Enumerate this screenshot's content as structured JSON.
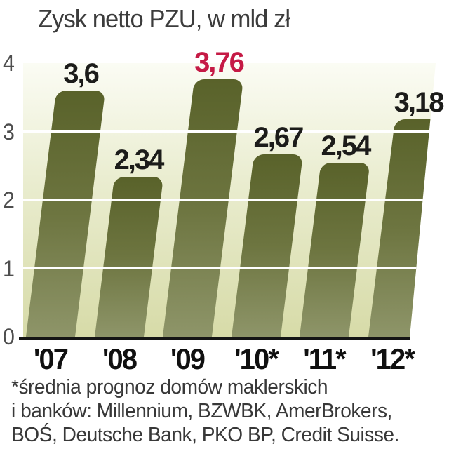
{
  "title": "Zysk netto PZU, w mld zł",
  "chart_data": {
    "type": "bar",
    "title": "Zysk netto PZU, w mld zł",
    "categories": [
      "'07",
      "'08",
      "'09",
      "'10*",
      "'11*",
      "'12*"
    ],
    "values": [
      3.6,
      2.34,
      3.76,
      2.67,
      2.54,
      3.18
    ],
    "value_labels": [
      "3,6",
      "2,34",
      "3,76",
      "2,67",
      "2,54",
      "3,18"
    ],
    "highlight_index": 2,
    "highlight_color": "#c51a45",
    "value_label_color": "#1c1c1a",
    "xlabel": "",
    "ylabel": "",
    "ylim": [
      0,
      4
    ],
    "yticks": [
      0,
      1,
      2,
      3,
      4
    ],
    "gridlines_at": [
      1,
      2,
      3
    ],
    "grid": true,
    "legend": "none",
    "bar_top_color": "#59622a",
    "bar_mid_color": "#6d7540",
    "bar_bottom_color": "#8e9569",
    "plot_bg_top": "#fbfcf4",
    "plot_bg_mid": "#e9ecce",
    "plot_bg_bottom": "#d7dba8",
    "gridline_color": "#ffffff",
    "axis_color": "#151515"
  },
  "footnote": {
    "lines": [
      "*średnia prognoz domów maklerskich",
      "i banków: Millennium, BZWBK, AmerBrokers,",
      "BOŚ, Deutsche Bank, PKO BP, Credit Suisse."
    ]
  }
}
